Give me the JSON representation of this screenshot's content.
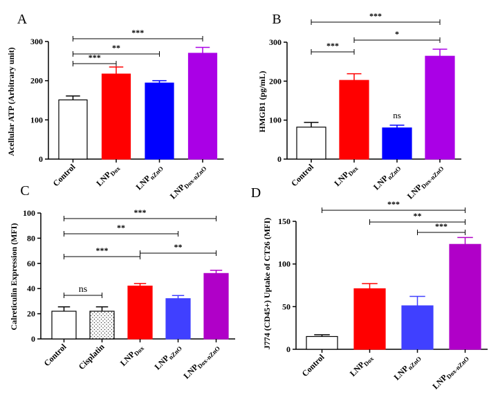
{
  "chart_data": [
    {
      "panel": "A",
      "type": "bar",
      "ylabel": "Acellular ATP (Arbitrary unit)",
      "ylim": [
        0,
        300
      ],
      "yticks": [
        "0",
        "100",
        "200",
        "300"
      ],
      "categories": [
        {
          "main": "Control",
          "sub": ""
        },
        {
          "main": "LNP",
          "sub": "Dox"
        },
        {
          "main": "LNP",
          "sub": "nZnO"
        },
        {
          "main": "LNP",
          "sub": "Dox-nZnO"
        }
      ],
      "values": [
        151,
        217,
        194,
        270
      ],
      "errors": [
        10,
        18,
        6,
        15
      ],
      "colors": [
        "#ffffff",
        "#ff0000",
        "#0000ff",
        "#aa00e6"
      ],
      "patterns": [
        "none",
        "none",
        "none",
        "none"
      ],
      "significance": [
        {
          "from": 0,
          "to": 1,
          "label": "***"
        },
        {
          "from": 0,
          "to": 2,
          "label": "**"
        },
        {
          "from": 0,
          "to": 3,
          "label": "***"
        }
      ]
    },
    {
      "panel": "B",
      "type": "bar",
      "ylabel": "HMGB1 (pg/mL)",
      "ylim": [
        0,
        300
      ],
      "yticks": [
        "0",
        "100",
        "200",
        "300"
      ],
      "categories": [
        {
          "main": "Control",
          "sub": ""
        },
        {
          "main": "LNP",
          "sub": "Dox"
        },
        {
          "main": "LNP",
          "sub": "nZnO"
        },
        {
          "main": "LNP",
          "sub": "Dox-nZnO"
        }
      ],
      "values": [
        82,
        202,
        80,
        264
      ],
      "errors": [
        12,
        17,
        7,
        18
      ],
      "colors": [
        "#ffffff",
        "#ff0000",
        "#0000ff",
        "#aa00e6"
      ],
      "patterns": [
        "none",
        "none",
        "none",
        "none"
      ],
      "bar_labels": [
        "",
        "",
        "ns",
        ""
      ],
      "significance": [
        {
          "from": 0,
          "to": 1,
          "label": "***"
        },
        {
          "from": 1,
          "to": 3,
          "label": "*"
        },
        {
          "from": 0,
          "to": 3,
          "label": "***"
        }
      ]
    },
    {
      "panel": "C",
      "type": "bar",
      "ylabel": "Calreticulin Expression (MFI)",
      "ylim": [
        0,
        100
      ],
      "yticks": [
        "0",
        "20",
        "40",
        "60",
        "80",
        "100"
      ],
      "categories": [
        {
          "main": "Control",
          "sub": ""
        },
        {
          "main": "Cisplatin",
          "sub": ""
        },
        {
          "main": "LNP",
          "sub": "Dox"
        },
        {
          "main": "LNP",
          "sub": "nZnO"
        },
        {
          "main": "LNP",
          "sub": "Dox-nZnO"
        }
      ],
      "values": [
        22,
        22,
        42,
        32,
        52
      ],
      "errors": [
        3.5,
        3.5,
        2,
        2.5,
        2.5
      ],
      "colors": [
        "#ffffff",
        "#ffffff",
        "#ff0000",
        "#4040ff",
        "#b000c8"
      ],
      "patterns": [
        "none",
        "dots",
        "none",
        "none",
        "none"
      ],
      "significance": [
        {
          "from": 0,
          "to": 1,
          "label": "ns"
        },
        {
          "from": 0,
          "to": 2,
          "label": "***"
        },
        {
          "from": 2,
          "to": 4,
          "label": "**"
        },
        {
          "from": 0,
          "to": 3,
          "label": "**"
        },
        {
          "from": 0,
          "to": 4,
          "label": "***"
        }
      ]
    },
    {
      "panel": "D",
      "type": "bar",
      "ylabel": "J774 (CD45+) Uptake of CT26 (MFI)",
      "ylim": [
        0,
        150
      ],
      "yticks": [
        "0",
        "50",
        "100",
        "150"
      ],
      "categories": [
        {
          "main": "Control",
          "sub": ""
        },
        {
          "main": "LNP",
          "sub": "Dox"
        },
        {
          "main": "LNP",
          "sub": "nZnO"
        },
        {
          "main": "LNP",
          "sub": "Dox-nZnO"
        }
      ],
      "values": [
        15,
        71,
        51,
        123
      ],
      "errors": [
        2,
        6,
        11,
        8
      ],
      "colors": [
        "#ffffff",
        "#ff0000",
        "#4040ff",
        "#b000c8"
      ],
      "patterns": [
        "none",
        "none",
        "none",
        "none"
      ],
      "significance": [
        {
          "from": 2,
          "to": 3,
          "label": "***"
        },
        {
          "from": 1,
          "to": 3,
          "label": "**"
        },
        {
          "from": 0,
          "to": 3,
          "label": "***"
        }
      ]
    }
  ]
}
